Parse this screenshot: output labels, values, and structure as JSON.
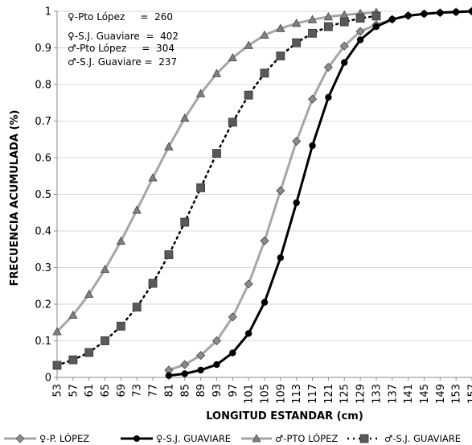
{
  "chart_data": {
    "type": "line",
    "xlabel": "LONGITUD ESTANDAR (cm)",
    "ylabel": "FRECUENCIA ACUMULADA (%)",
    "xlim": [
      53,
      157
    ],
    "ylim": [
      0,
      1
    ],
    "x_ticks": [
      "53",
      "57",
      "61",
      "65",
      "69",
      "73",
      "77",
      "81",
      "85",
      "89",
      "93",
      "97",
      "101",
      "105",
      "109",
      "113",
      "117",
      "121",
      "125",
      "129",
      "133",
      "137",
      "141",
      "145",
      "149",
      "153",
      "157"
    ],
    "y_ticks": [
      "0",
      "0.1",
      "0.2",
      "0.3",
      "0.4",
      "0.5",
      "0.6",
      "0.7",
      "0.8",
      "0.9",
      "1"
    ],
    "grid": "horizontal",
    "annotations": [
      "♀-Pto López     =  260",
      "♀-S.J. Guaviare  =  402",
      "♂-Pto López     =  304",
      "♂-S.J. Guaviare =  237"
    ],
    "legend_position": "bottom",
    "series": [
      {
        "name": "♀-P. LÓPEZ",
        "color": "#a6a6a6",
        "marker": "diamond",
        "marker_color": "#8c8c8c",
        "line": "solid",
        "x": [
          81,
          85,
          89,
          93,
          97,
          101,
          105,
          109,
          113,
          117,
          121,
          125,
          129,
          133,
          137,
          141,
          145,
          149,
          153,
          157
        ],
        "values": [
          0.02,
          0.035,
          0.06,
          0.1,
          0.165,
          0.255,
          0.373,
          0.51,
          0.645,
          0.76,
          0.847,
          0.905,
          0.945,
          0.963,
          0.978,
          0.988,
          0.993,
          0.996,
          0.998,
          1.0
        ]
      },
      {
        "name": "♀-S.J. GUAVIARE",
        "color": "#000000",
        "marker": "circle",
        "marker_color": "#000000",
        "line": "solid",
        "x": [
          81,
          85,
          89,
          93,
          97,
          101,
          105,
          109,
          113,
          117,
          121,
          125,
          129,
          133,
          137,
          141,
          145,
          149,
          153,
          157
        ],
        "values": [
          0.005,
          0.01,
          0.02,
          0.035,
          0.067,
          0.12,
          0.205,
          0.327,
          0.477,
          0.633,
          0.765,
          0.86,
          0.922,
          0.958,
          0.978,
          0.988,
          0.993,
          0.996,
          0.998,
          1.0
        ]
      },
      {
        "name": "♂-PTO LÓPEZ",
        "color": "#a6a6a6",
        "marker": "triangle",
        "marker_color": "#808080",
        "line": "solid",
        "x": [
          53,
          57,
          61,
          65,
          69,
          73,
          77,
          81,
          85,
          89,
          93,
          97,
          101,
          105,
          109,
          113,
          117,
          121,
          125,
          129,
          133
        ],
        "values": [
          0.125,
          0.17,
          0.227,
          0.295,
          0.372,
          0.457,
          0.545,
          0.63,
          0.708,
          0.775,
          0.83,
          0.873,
          0.907,
          0.935,
          0.953,
          0.967,
          0.977,
          0.985,
          0.99,
          0.994,
          0.997
        ]
      },
      {
        "name": "♂-S.J. GUAVIARE",
        "color": "#000000",
        "marker": "square",
        "marker_color": "#595959",
        "line": "dotted",
        "x": [
          53,
          57,
          61,
          65,
          69,
          73,
          77,
          81,
          85,
          89,
          93,
          97,
          101,
          105,
          109,
          113,
          117,
          121,
          125,
          129,
          133
        ],
        "values": [
          0.033,
          0.048,
          0.068,
          0.1,
          0.14,
          0.192,
          0.257,
          0.335,
          0.424,
          0.518,
          0.612,
          0.697,
          0.771,
          0.831,
          0.878,
          0.914,
          0.94,
          0.958,
          0.971,
          0.981,
          0.987
        ]
      }
    ]
  }
}
